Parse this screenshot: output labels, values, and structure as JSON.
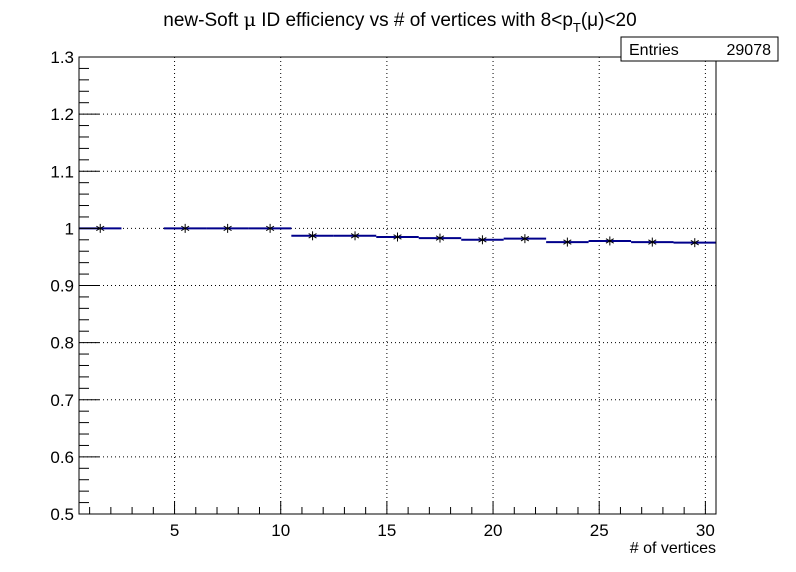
{
  "chart_data": {
    "type": "scatter",
    "title": {
      "prefix": "new-Soft ",
      "mu": "μ",
      "middle": " ID efficiency vs # of vertices with 8<p",
      "subscript": "T",
      "suffix": "(μ)<20"
    },
    "xlabel": "# of vertices",
    "ylabel": "",
    "xlim": [
      0.5,
      30.5
    ],
    "ylim": [
      0.5,
      1.3
    ],
    "x_ticks": [
      5,
      10,
      15,
      20,
      25,
      30
    ],
    "y_ticks": [
      0.5,
      0.6,
      0.7,
      0.8,
      0.9,
      1.0,
      1.1,
      1.2,
      1.3
    ],
    "x_tick_labels": [
      "5",
      "10",
      "15",
      "20",
      "25",
      "30"
    ],
    "y_tick_labels": [
      "0.5",
      "0.6",
      "0.7",
      "0.8",
      "0.9",
      "1",
      "1.1",
      "1.2",
      "1.3"
    ],
    "grid": true,
    "series": [
      {
        "marker": "asterisk",
        "color": "#00008b",
        "marker_color": "#000000",
        "points": [
          {
            "x": 1.5,
            "xlow": 0.5,
            "xhigh": 2.5,
            "y": 1.0
          },
          {
            "x": 5.5,
            "xlow": 4.5,
            "xhigh": 6.5,
            "y": 1.0
          },
          {
            "x": 7.5,
            "xlow": 6.5,
            "xhigh": 8.5,
            "y": 1.0
          },
          {
            "x": 9.5,
            "xlow": 8.5,
            "xhigh": 10.5,
            "y": 1.0
          },
          {
            "x": 11.5,
            "xlow": 10.5,
            "xhigh": 12.5,
            "y": 0.987
          },
          {
            "x": 13.5,
            "xlow": 12.5,
            "xhigh": 14.5,
            "y": 0.987
          },
          {
            "x": 15.5,
            "xlow": 14.5,
            "xhigh": 16.5,
            "y": 0.985
          },
          {
            "x": 17.5,
            "xlow": 16.5,
            "xhigh": 18.5,
            "y": 0.983
          },
          {
            "x": 19.5,
            "xlow": 18.5,
            "xhigh": 20.5,
            "y": 0.98
          },
          {
            "x": 21.5,
            "xlow": 20.5,
            "xhigh": 22.5,
            "y": 0.982
          },
          {
            "x": 23.5,
            "xlow": 22.5,
            "xhigh": 24.5,
            "y": 0.976
          },
          {
            "x": 25.5,
            "xlow": 24.5,
            "xhigh": 26.5,
            "y": 0.978
          },
          {
            "x": 27.5,
            "xlow": 26.5,
            "xhigh": 28.5,
            "y": 0.976
          },
          {
            "x": 29.5,
            "xlow": 28.5,
            "xhigh": 30.5,
            "y": 0.975
          }
        ]
      }
    ],
    "stats_box": {
      "label": "Entries",
      "value": "29078"
    }
  }
}
